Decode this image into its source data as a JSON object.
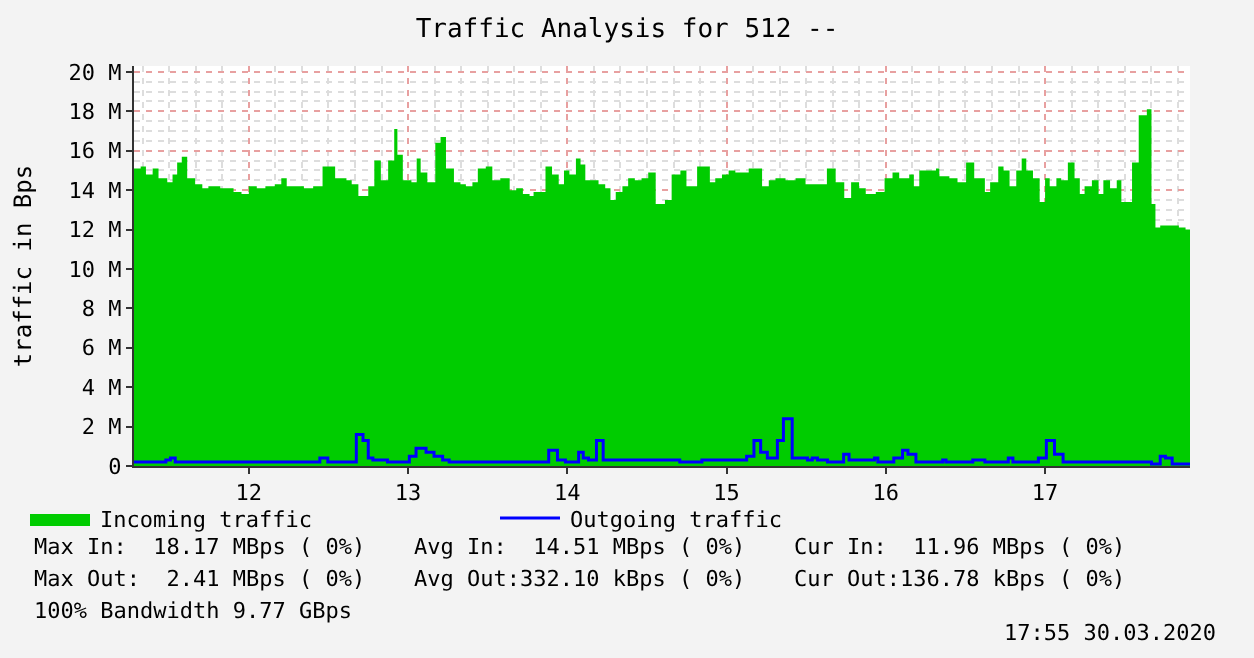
{
  "chart_data": {
    "type": "area",
    "title": "Traffic Analysis for 512 --",
    "ylabel": "traffic in Bps",
    "xlim": [
      11.279,
      17.91
    ],
    "xticks": [
      12,
      13,
      14,
      15,
      16,
      17
    ],
    "ylim": [
      0,
      20.3
    ],
    "yticks": [
      {
        "value": 0,
        "label": "0"
      },
      {
        "value": 2,
        "label": "2 M"
      },
      {
        "value": 4,
        "label": "4 M"
      },
      {
        "value": 6,
        "label": "6 M"
      },
      {
        "value": 8,
        "label": "8 M"
      },
      {
        "value": 10,
        "label": "10 M"
      },
      {
        "value": 12,
        "label": "12 M"
      },
      {
        "value": 14,
        "label": "14 M"
      },
      {
        "value": 16,
        "label": "16 M"
      },
      {
        "value": 18,
        "label": "18 M"
      },
      {
        "value": 20,
        "label": "20 M"
      }
    ],
    "grid": true,
    "legend": "bottom left",
    "line_style": "solid",
    "series": [
      {
        "name": "Incoming traffic",
        "color": "#00cc00",
        "x": [
          11.279,
          11.321,
          11.354,
          11.396,
          11.433,
          11.488,
          11.521,
          11.55,
          11.579,
          11.613,
          11.663,
          11.708,
          11.746,
          11.821,
          11.904,
          11.954,
          12.0,
          12.05,
          12.104,
          12.163,
          12.204,
          12.238,
          12.3,
          12.346,
          12.404,
          12.463,
          12.542,
          12.613,
          12.646,
          12.688,
          12.75,
          12.788,
          12.829,
          12.875,
          12.913,
          12.933,
          12.967,
          13.021,
          13.054,
          13.079,
          13.121,
          13.171,
          13.204,
          13.238,
          13.288,
          13.329,
          13.363,
          13.404,
          13.438,
          13.488,
          13.529,
          13.579,
          13.638,
          13.679,
          13.721,
          13.763,
          13.788,
          13.863,
          13.904,
          13.946,
          13.979,
          14.013,
          14.054,
          14.083,
          14.113,
          14.196,
          14.238,
          14.271,
          14.304,
          14.346,
          14.382,
          14.424,
          14.466,
          14.508,
          14.555,
          14.613,
          14.655,
          14.71,
          14.748,
          14.815,
          14.895,
          14.929,
          14.971,
          15.013,
          15.055,
          15.139,
          15.223,
          15.265,
          15.307,
          15.37,
          15.433,
          15.496,
          15.63,
          15.685,
          15.739,
          15.782,
          15.832,
          15.874,
          15.937,
          15.992,
          16.042,
          16.084,
          16.147,
          16.176,
          16.21,
          16.315,
          16.336,
          16.399,
          16.45,
          16.504,
          16.555,
          16.622,
          16.655,
          16.706,
          16.739,
          16.777,
          16.819,
          16.853,
          16.882,
          16.924,
          16.966,
          17.0,
          17.029,
          17.071,
          17.101,
          17.143,
          17.185,
          17.218,
          17.248,
          17.294,
          17.336,
          17.366,
          17.408,
          17.45,
          17.479,
          17.546,
          17.588,
          17.639,
          17.668,
          17.693,
          17.723,
          17.84,
          17.882,
          17.91
        ],
        "values": [
          15.1,
          15.2,
          14.8,
          15.1,
          14.6,
          14.4,
          14.8,
          15.4,
          15.7,
          14.6,
          14.3,
          14.1,
          14.2,
          14.1,
          13.9,
          13.8,
          14.2,
          14.1,
          14.2,
          14.3,
          14.6,
          14.2,
          14.2,
          14.1,
          14.2,
          15.2,
          14.6,
          14.5,
          14.3,
          13.7,
          14.2,
          15.5,
          14.5,
          15.5,
          17.1,
          15.8,
          14.5,
          14.4,
          15.6,
          14.9,
          14.4,
          16.4,
          16.7,
          15.1,
          14.4,
          14.3,
          14.2,
          14.4,
          15.1,
          15.2,
          14.5,
          14.6,
          14.0,
          14.1,
          13.8,
          13.7,
          13.9,
          15.2,
          14.8,
          14.3,
          15.0,
          14.8,
          15.6,
          15.3,
          14.5,
          14.3,
          14.1,
          13.5,
          13.9,
          14.2,
          14.6,
          14.5,
          14.6,
          14.9,
          13.3,
          13.5,
          14.8,
          15.0,
          14.2,
          15.2,
          14.4,
          14.6,
          14.8,
          15.0,
          14.9,
          15.1,
          14.2,
          14.5,
          14.6,
          14.5,
          14.6,
          14.3,
          15.1,
          14.4,
          13.6,
          14.4,
          14.1,
          13.8,
          13.9,
          14.6,
          14.9,
          14.6,
          14.8,
          14.2,
          15.0,
          15.1,
          14.7,
          14.6,
          14.4,
          15.4,
          14.6,
          13.9,
          14.4,
          15.2,
          15.0,
          14.2,
          15.0,
          15.6,
          15.0,
          14.6,
          13.4,
          14.6,
          14.2,
          14.6,
          14.5,
          15.4,
          14.6,
          13.8,
          14.2,
          14.5,
          13.8,
          14.5,
          14.1,
          14.5,
          13.4,
          15.4,
          17.8,
          18.1,
          13.3,
          12.1,
          12.2,
          12.1,
          12.0,
          12.0
        ]
      },
      {
        "name": "Outgoing traffic",
        "type": "step",
        "color": "#0000ff",
        "x": [
          11.279,
          11.479,
          11.508,
          11.538,
          12.446,
          12.496,
          12.675,
          12.717,
          12.75,
          12.779,
          12.871,
          13.008,
          13.05,
          13.113,
          13.163,
          13.217,
          13.258,
          13.883,
          13.938,
          13.988,
          14.071,
          14.1,
          14.133,
          14.183,
          14.225,
          14.706,
          14.845,
          15.126,
          15.172,
          15.214,
          15.256,
          15.319,
          15.357,
          15.412,
          15.508,
          15.538,
          15.571,
          15.634,
          15.735,
          15.769,
          15.929,
          15.95,
          16.05,
          16.105,
          16.139,
          16.189,
          16.357,
          16.378,
          16.546,
          16.622,
          16.769,
          16.798,
          16.958,
          17.008,
          17.059,
          17.113,
          17.668,
          17.723,
          17.756,
          17.798,
          17.91
        ],
        "values": [
          0.2,
          0.3,
          0.4,
          0.2,
          0.4,
          0.2,
          1.6,
          1.3,
          0.4,
          0.3,
          0.2,
          0.5,
          0.9,
          0.7,
          0.5,
          0.3,
          0.2,
          0.8,
          0.3,
          0.2,
          0.7,
          0.4,
          0.3,
          1.3,
          0.3,
          0.2,
          0.3,
          0.5,
          1.3,
          0.7,
          0.4,
          1.3,
          2.4,
          0.4,
          0.3,
          0.4,
          0.3,
          0.2,
          0.6,
          0.3,
          0.4,
          0.2,
          0.4,
          0.8,
          0.6,
          0.2,
          0.3,
          0.2,
          0.3,
          0.2,
          0.4,
          0.2,
          0.4,
          1.3,
          0.6,
          0.2,
          0.1,
          0.5,
          0.4,
          0.1,
          0.1
        ]
      }
    ],
    "annotations": [
      "Max In:  18.17 MBps ( 0%)",
      "Avg In:  14.51 MBps ( 0%)",
      "Cur In:  11.96 MBps ( 0%)",
      "Max Out:  2.41 MBps ( 0%)",
      "Avg Out:332.10 kBps ( 0%)",
      "Cur Out:136.78 kBps ( 0%)",
      "100% Bandwidth 9.77 GBps",
      "17:55 30.03.2020"
    ]
  }
}
